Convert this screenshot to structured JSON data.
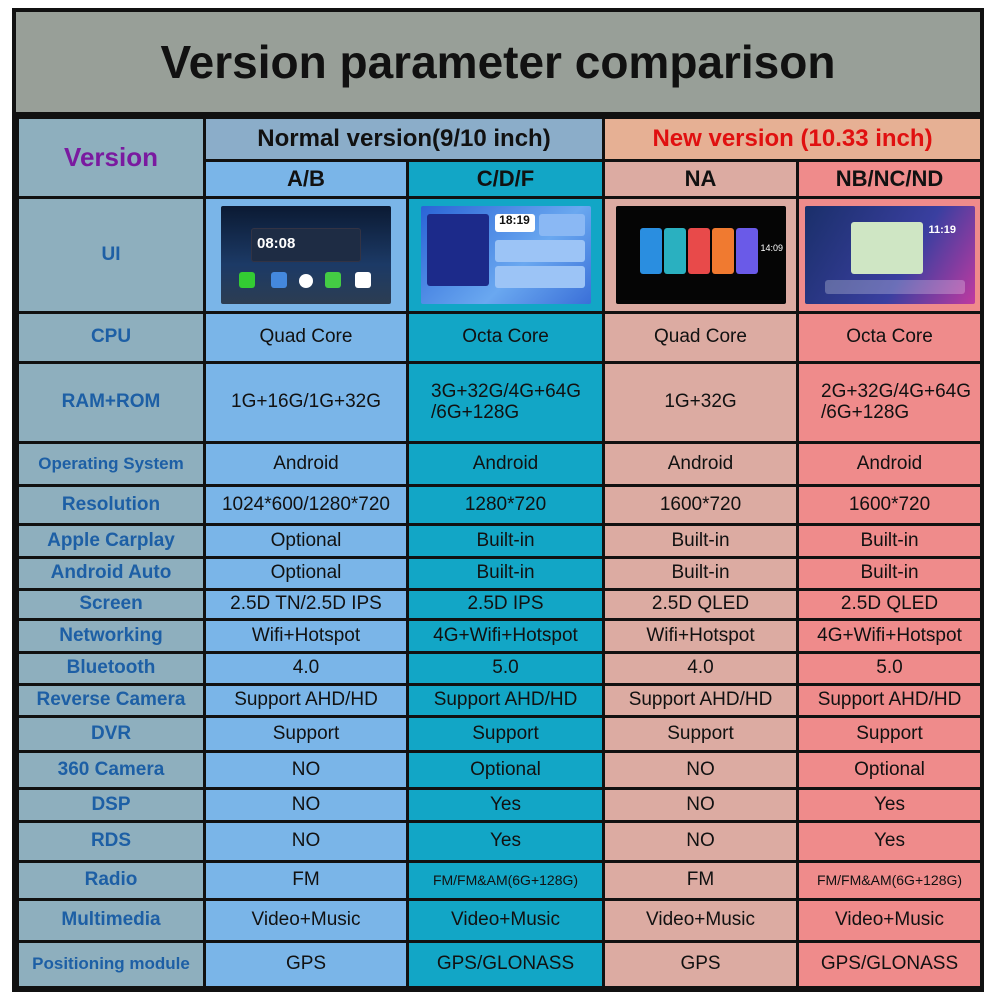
{
  "title": "Version parameter comparison",
  "header": {
    "version_label": "Version",
    "normal": "Normal version(9/10 inch)",
    "new": "New version (10.33 inch)",
    "models": [
      "A/B",
      "C/D/F",
      "NA",
      "NB/NC/ND"
    ]
  },
  "ui_row": {
    "label": "UI",
    "screens": [
      "home-screen-ab",
      "home-screen-cdf",
      "home-screen-na",
      "home-screen-nb"
    ]
  },
  "colors": {
    "ab": "#7ab5e8",
    "cdf": "#12a6c6",
    "na": "#dcaba2",
    "nb": "#ef8b8b",
    "new_text": "#e01010",
    "label_text": "#1d5fa5",
    "version_text": "#7a1aa0"
  },
  "rows": [
    {
      "label": "CPU",
      "values": [
        "Quad Core",
        "Octa Core",
        "Quad Core",
        "Octa Core"
      ]
    },
    {
      "label": "RAM+ROM",
      "values": [
        "1G+16G/1G+32G",
        "3G+32G/4G+64G /6G+128G",
        "1G+32G",
        "2G+32G/4G+64G /6G+128G"
      ]
    },
    {
      "label": "Operating System",
      "values": [
        "Android",
        "Android",
        "Android",
        "Android"
      ]
    },
    {
      "label": "Resolution",
      "values": [
        "1024*600/1280*720",
        "1280*720",
        "1600*720",
        "1600*720"
      ]
    },
    {
      "label": "Apple Carplay",
      "values": [
        "Optional",
        "Built-in",
        "Built-in",
        "Built-in"
      ]
    },
    {
      "label": "Android Auto",
      "values": [
        "Optional",
        "Built-in",
        "Built-in",
        "Built-in"
      ]
    },
    {
      "label": "Screen",
      "values": [
        "2.5D TN/2.5D IPS",
        "2.5D IPS",
        "2.5D QLED",
        "2.5D QLED"
      ]
    },
    {
      "label": "Networking",
      "values": [
        "Wifi+Hotspot",
        "4G+Wifi+Hotspot",
        "Wifi+Hotspot",
        "4G+Wifi+Hotspot"
      ]
    },
    {
      "label": "Bluetooth",
      "values": [
        "4.0",
        "5.0",
        "4.0",
        "5.0"
      ]
    },
    {
      "label": "Reverse Camera",
      "values": [
        "Support AHD/HD",
        "Support AHD/HD",
        "Support AHD/HD",
        "Support AHD/HD"
      ]
    },
    {
      "label": "DVR",
      "values": [
        "Support",
        "Support",
        "Support",
        "Support"
      ]
    },
    {
      "label": "360 Camera",
      "values": [
        "NO",
        "Optional",
        "NO",
        "Optional"
      ]
    },
    {
      "label": "DSP",
      "values": [
        "NO",
        "Yes",
        "NO",
        "Yes"
      ]
    },
    {
      "label": "RDS",
      "values": [
        "NO",
        "Yes",
        "NO",
        "Yes"
      ]
    },
    {
      "label": "Radio",
      "values": [
        "FM",
        "FM/FM&AM(6G+128G)",
        "FM",
        "FM/FM&AM(6G+128G)"
      ]
    },
    {
      "label": "Multimedia",
      "values": [
        "Video+Music",
        "Video+Music",
        "Video+Music",
        "Video+Music"
      ]
    },
    {
      "label": "Positioning module",
      "values": [
        "GPS",
        "GPS/GLONASS",
        "GPS",
        "GPS/GLONASS"
      ]
    }
  ]
}
